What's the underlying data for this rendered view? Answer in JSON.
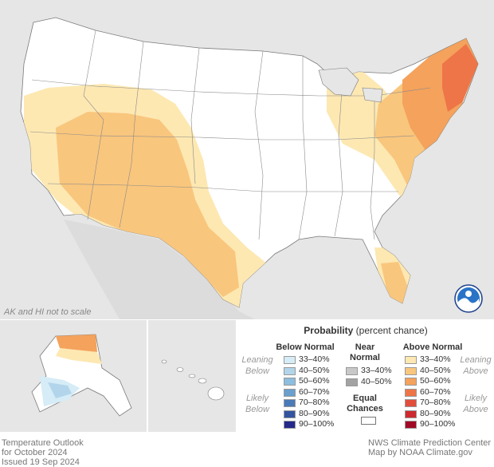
{
  "inset_note": "AK and HI not to scale",
  "legend": {
    "title_bold": "Probability",
    "title_rest": "(percent chance)",
    "below_header": "Below Normal",
    "near_header_1": "Near",
    "near_header_2": "Normal",
    "above_header": "Above Normal",
    "equal_1": "Equal",
    "equal_2": "Chances",
    "leaning_below_1": "Leaning",
    "leaning_below_2": "Below",
    "likely_below_1": "Likely",
    "likely_below_2": "Below",
    "leaning_above_1": "Leaning",
    "leaning_above_2": "Above",
    "likely_above_1": "Likely",
    "likely_above_2": "Above",
    "below": [
      {
        "label": "33–40%",
        "color": "#d6ecf7"
      },
      {
        "label": "40–50%",
        "color": "#b2d5eb"
      },
      {
        "label": "50–60%",
        "color": "#8dbedf"
      },
      {
        "label": "60–70%",
        "color": "#6a9fce"
      },
      {
        "label": "70–80%",
        "color": "#4a7ab8"
      },
      {
        "label": "80–90%",
        "color": "#3355a0"
      },
      {
        "label": "90–100%",
        "color": "#25298a"
      }
    ],
    "near": [
      {
        "label": "33–40%",
        "color": "#c8c8c8"
      },
      {
        "label": "40–50%",
        "color": "#a3a3a3"
      }
    ],
    "above": [
      {
        "label": "33–40%",
        "color": "#fde8b2"
      },
      {
        "label": "40–50%",
        "color": "#f9c67d"
      },
      {
        "label": "50–60%",
        "color": "#f4a25c"
      },
      {
        "label": "60–70%",
        "color": "#ee7548"
      },
      {
        "label": "70–80%",
        "color": "#e24e3c"
      },
      {
        "label": "80–90%",
        "color": "#cc2a2e"
      },
      {
        "label": "90–100%",
        "color": "#a10a24"
      }
    ]
  },
  "footer": {
    "left_1": "Temperature Outlook",
    "left_2": "for October 2024",
    "left_3": "Issued 19 Sep 2024",
    "right_1": "NWS Climate Prediction Center",
    "right_2": "Map by NOAA Climate.gov"
  },
  "colors": {
    "land_outside": "#e6e6e6",
    "conus_land": "#ffffff",
    "leaning_above": "#fde8b2",
    "above_40_50": "#f9c67d",
    "above_50_60": "#f4a25c",
    "above_60_70": "#ee7548",
    "likely_below_ak": "#b2d5eb",
    "leaning_below_ak": "#d6ecf7"
  }
}
